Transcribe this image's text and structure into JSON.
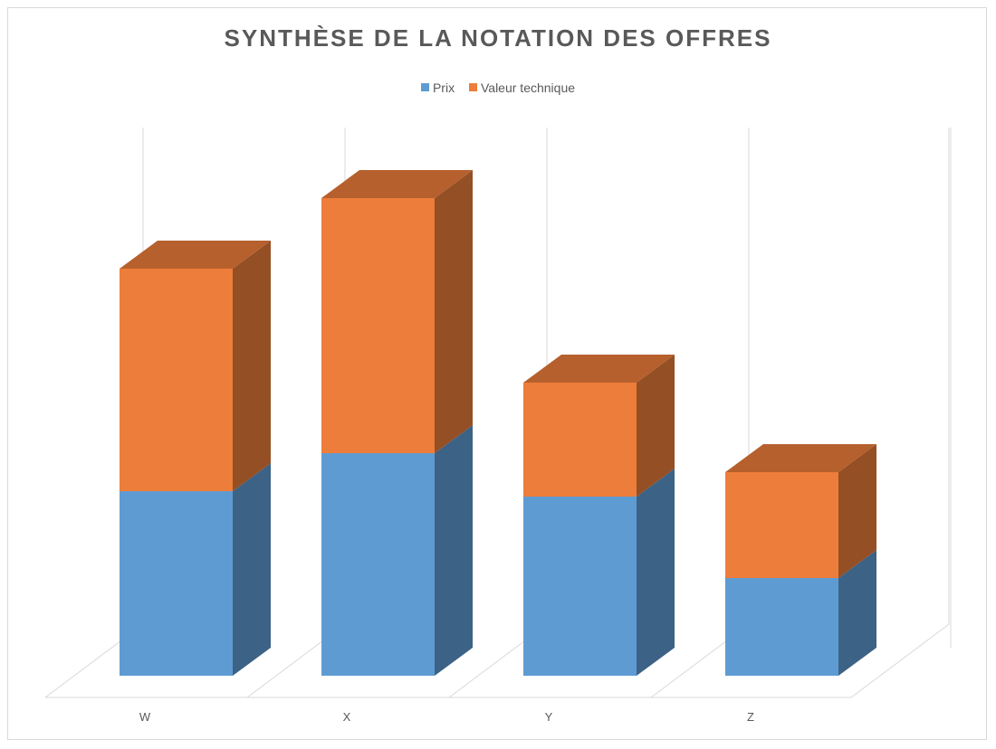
{
  "chart_data": {
    "type": "bar",
    "stacked": true,
    "three_d": true,
    "title": "SYNTHÈSE DE LA NOTATION DES OFFRES",
    "categories": [
      "W",
      "X",
      "Y",
      "Z"
    ],
    "series": [
      {
        "name": "Prix",
        "values": [
          34,
          41,
          33,
          18
        ],
        "color": "#5f9bd3"
      },
      {
        "name": "Valeur technique",
        "values": [
          41,
          47,
          21,
          19.5
        ],
        "color": "#ed7d3a"
      }
    ],
    "ylim": [
      0,
      100
    ],
    "grid": true,
    "legend_position": "top",
    "xlabel": "",
    "ylabel": ""
  }
}
